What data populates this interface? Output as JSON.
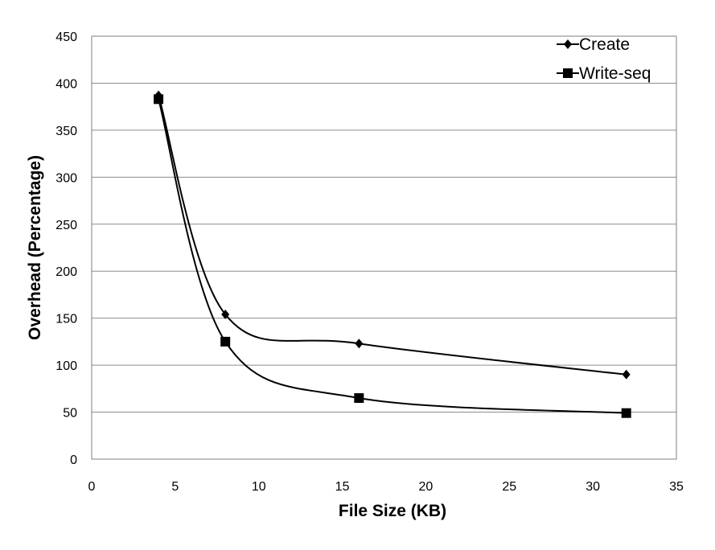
{
  "chart_data": {
    "type": "line",
    "title": "",
    "xlabel": "File Size (KB)",
    "ylabel": "Overhead (Percentage)",
    "xlim": [
      0,
      35
    ],
    "ylim": [
      0,
      450
    ],
    "xticks": [
      0,
      5,
      10,
      15,
      20,
      25,
      30,
      35
    ],
    "yticks": [
      0,
      50,
      100,
      150,
      200,
      250,
      300,
      350,
      400,
      450
    ],
    "grid": "horizontal",
    "legend_position": "top-right",
    "smoothed": true,
    "series": [
      {
        "name": "Create",
        "marker": "diamond",
        "color": "#000000",
        "x": [
          4,
          8,
          16,
          32
        ],
        "y": [
          387,
          154,
          123,
          90
        ]
      },
      {
        "name": "Write-seq",
        "marker": "square",
        "color": "#000000",
        "x": [
          4,
          8,
          16,
          32
        ],
        "y": [
          383,
          125,
          65,
          49
        ]
      }
    ]
  }
}
